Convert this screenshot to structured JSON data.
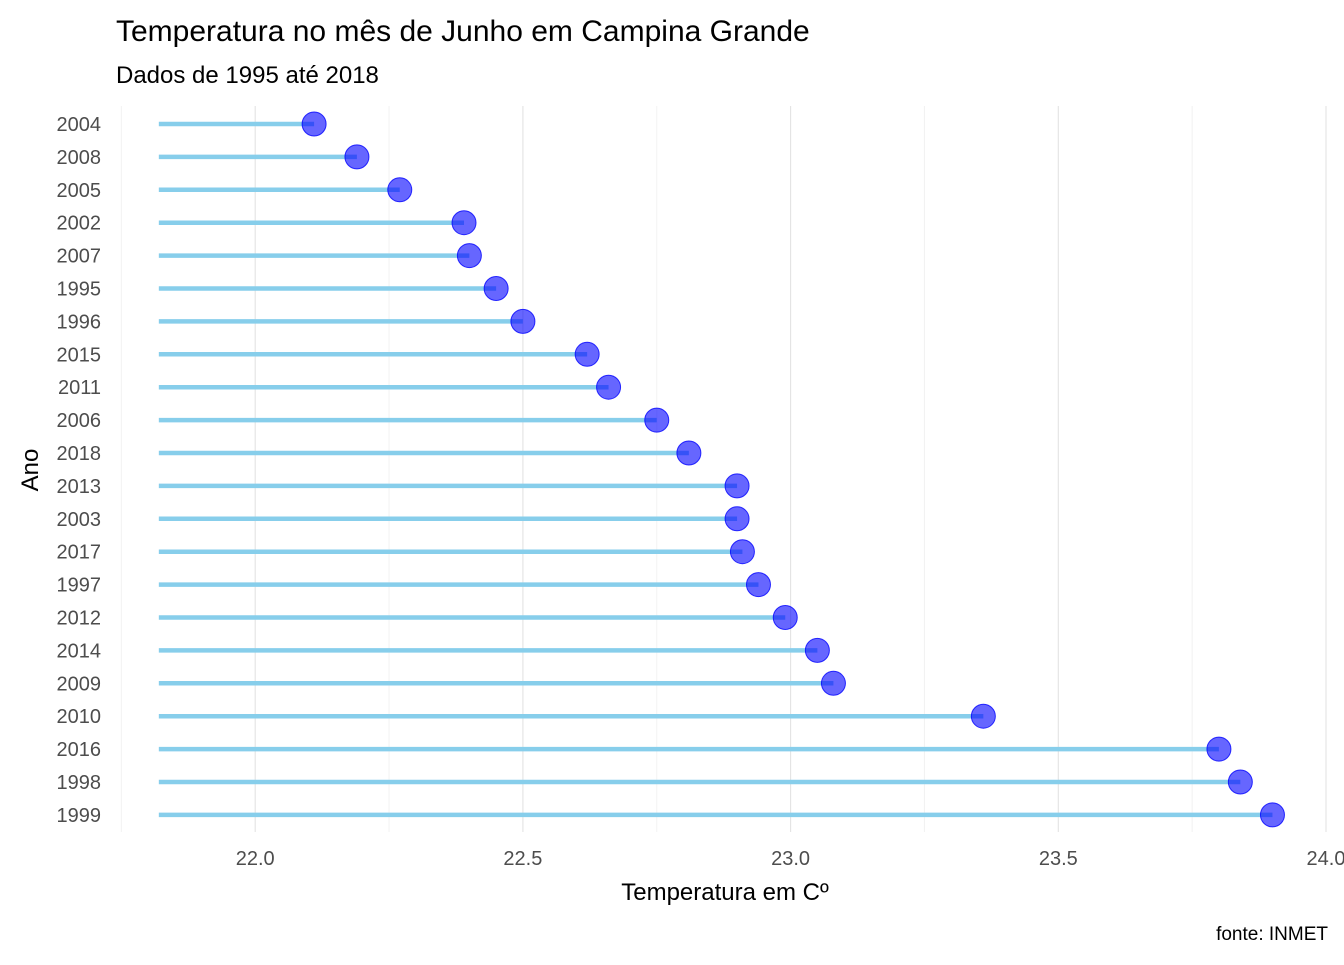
{
  "chart_data": {
    "type": "lollipop",
    "title": "Temperatura no mês de Junho em Campina Grande",
    "subtitle": "Dados de 1995 até 2018",
    "xlabel": "Temperatura em Cº",
    "ylabel": "Ano",
    "caption": "fonte: INMET",
    "xlim": [
      21.74,
      24.0
    ],
    "baseline": 21.82,
    "x_ticks": [
      "22.0",
      "22.5",
      "23.0",
      "23.5",
      "24.0"
    ],
    "x_tick_values": [
      22.0,
      22.5,
      23.0,
      23.5,
      24.0
    ],
    "grid": "vertical",
    "stem_color": "#87ceeb",
    "point_color": "#0000ff",
    "point_opacity": 0.6,
    "categories": [
      "2004",
      "2008",
      "2005",
      "2002",
      "2007",
      "1995",
      "1996",
      "2015",
      "2011",
      "2006",
      "2018",
      "2013",
      "2003",
      "2017",
      "1997",
      "2012",
      "2014",
      "2009",
      "2010",
      "2016",
      "1998",
      "1999"
    ],
    "values": [
      22.11,
      22.19,
      22.27,
      22.39,
      22.4,
      22.45,
      22.5,
      22.62,
      22.66,
      22.75,
      22.81,
      22.9,
      22.9,
      22.91,
      22.94,
      22.99,
      23.05,
      23.08,
      23.36,
      23.8,
      23.84,
      23.9
    ]
  }
}
